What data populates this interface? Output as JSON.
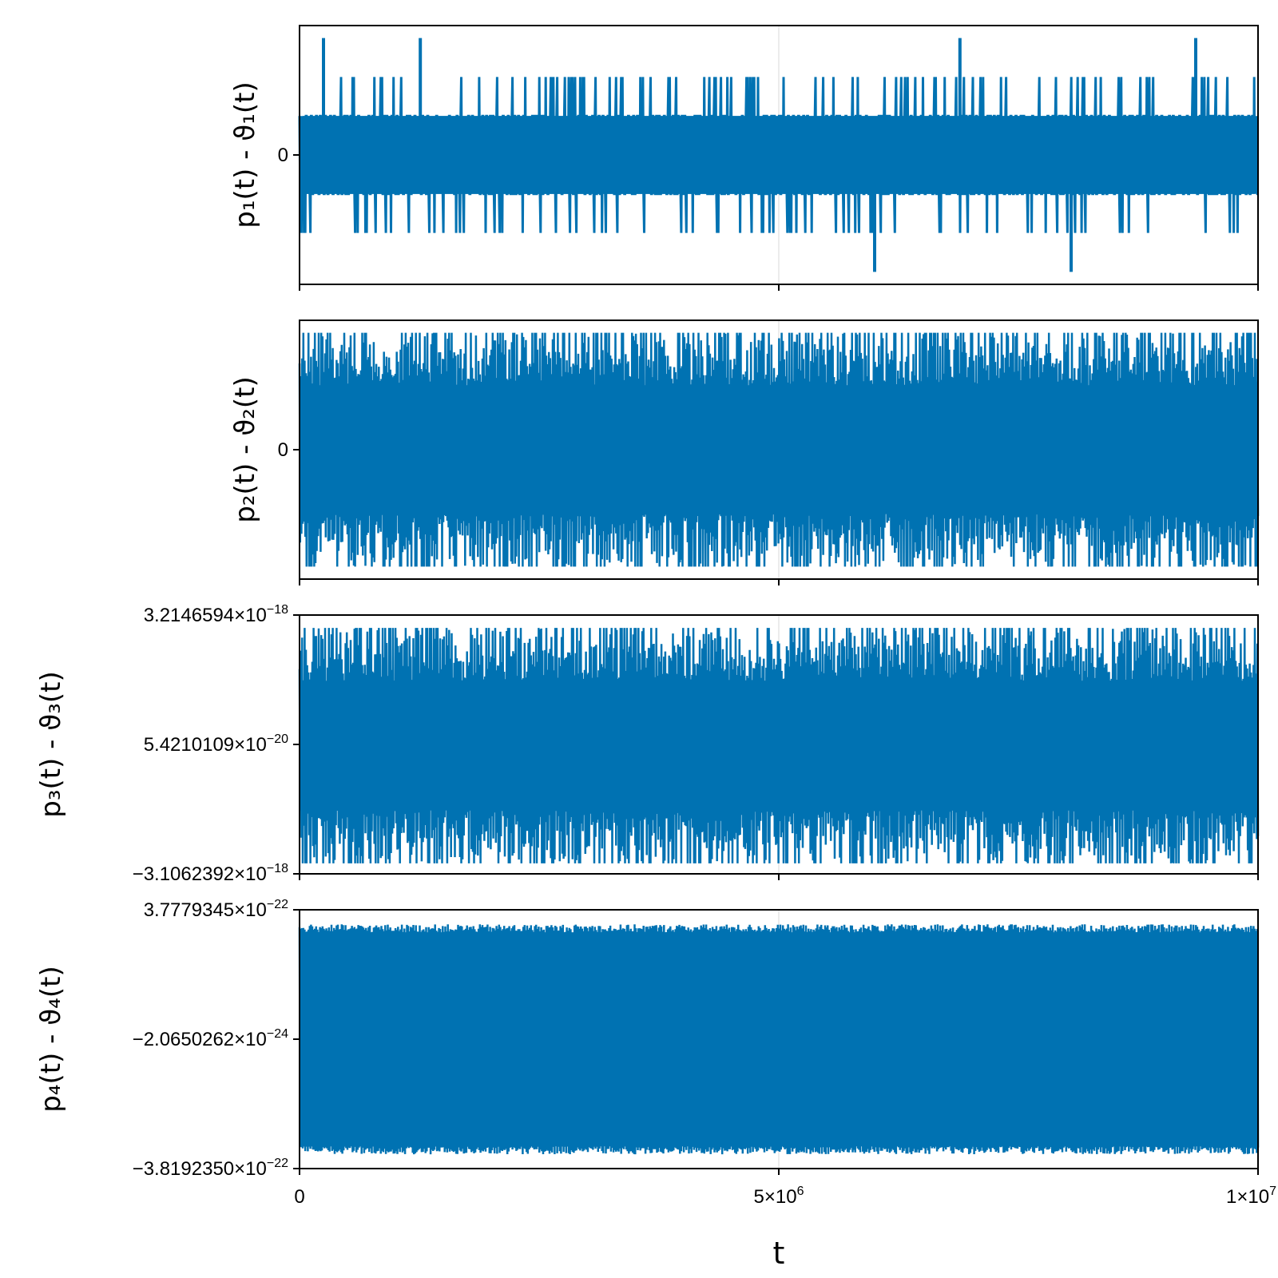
{
  "chart_data": {
    "type": "line",
    "layout": "stacked-subplots",
    "series_color": "#0072b2",
    "grid": true,
    "x_axis": {
      "label": "t",
      "range": [
        0,
        10000000
      ],
      "ticks": [
        {
          "value": 0,
          "mantissa": "0",
          "exponent": ""
        },
        {
          "value": 5000000,
          "mantissa": "5×10",
          "exponent": "6"
        },
        {
          "value": 10000000,
          "mantissa": "1×10",
          "exponent": "7"
        }
      ]
    },
    "panels": [
      {
        "ylabel": "p₁(t) - ϑ₁(t)",
        "yticks": [
          {
            "value": 0,
            "mantissa": "0",
            "exponent": ""
          }
        ],
        "ylim": [
          -1.66,
          1.66
        ],
        "signal": "quantized",
        "levels": [
          -1.5,
          -1.0,
          -0.5,
          0.5,
          1.0,
          1.5
        ],
        "rare_spikes": [
          {
            "t": 250000,
            "value": 1.5
          },
          {
            "t": 1260000,
            "value": 1.5
          },
          {
            "t": 6890000,
            "value": 1.5
          },
          {
            "t": 9350000,
            "value": 1.5
          },
          {
            "t": 6000000,
            "value": -1.5
          },
          {
            "t": 8050000,
            "value": -1.5
          }
        ]
      },
      {
        "ylabel": "p₂(t) - ϑ₂(t)",
        "yticks": [
          {
            "value": 0,
            "mantissa": "0",
            "exponent": ""
          }
        ],
        "ylim": [
          -1.66,
          1.66
        ],
        "signal": "noise",
        "amplitude": 1.5,
        "max_value": 1.5,
        "min_value": -1.5
      },
      {
        "ylabel": "p₃(t) - ϑ₃(t)",
        "yticks": [
          {
            "value": 3.2146594e-18,
            "mantissa": "3.2146594×10",
            "exponent": "−18"
          },
          {
            "value": 5.4210109e-20,
            "mantissa": "5.4210109×10",
            "exponent": "−20"
          },
          {
            "value": -3.1062392e-18,
            "mantissa": "−3.1062392×10",
            "exponent": "−18"
          }
        ],
        "ylim": [
          -3.1062392e-18,
          3.2146594e-18
        ],
        "signal": "noise",
        "max_value": 2.9e-18,
        "min_value": -2.85e-18
      },
      {
        "ylabel": "p₄(t) - ϑ₄(t)",
        "yticks": [
          {
            "value": 3.7779345e-22,
            "mantissa": "3.7779345×10",
            "exponent": "−22"
          },
          {
            "value": -2.0650262e-24,
            "mantissa": "−2.0650262×10",
            "exponent": "−24"
          },
          {
            "value": -3.819235e-22,
            "mantissa": "−3.8192350×10",
            "exponent": "−22"
          }
        ],
        "ylim": [
          -3.819235e-22,
          3.7779345e-22
        ],
        "signal": "dense-oscillation",
        "max_value": 3.35e-22,
        "min_value": -3.4e-22
      }
    ]
  }
}
